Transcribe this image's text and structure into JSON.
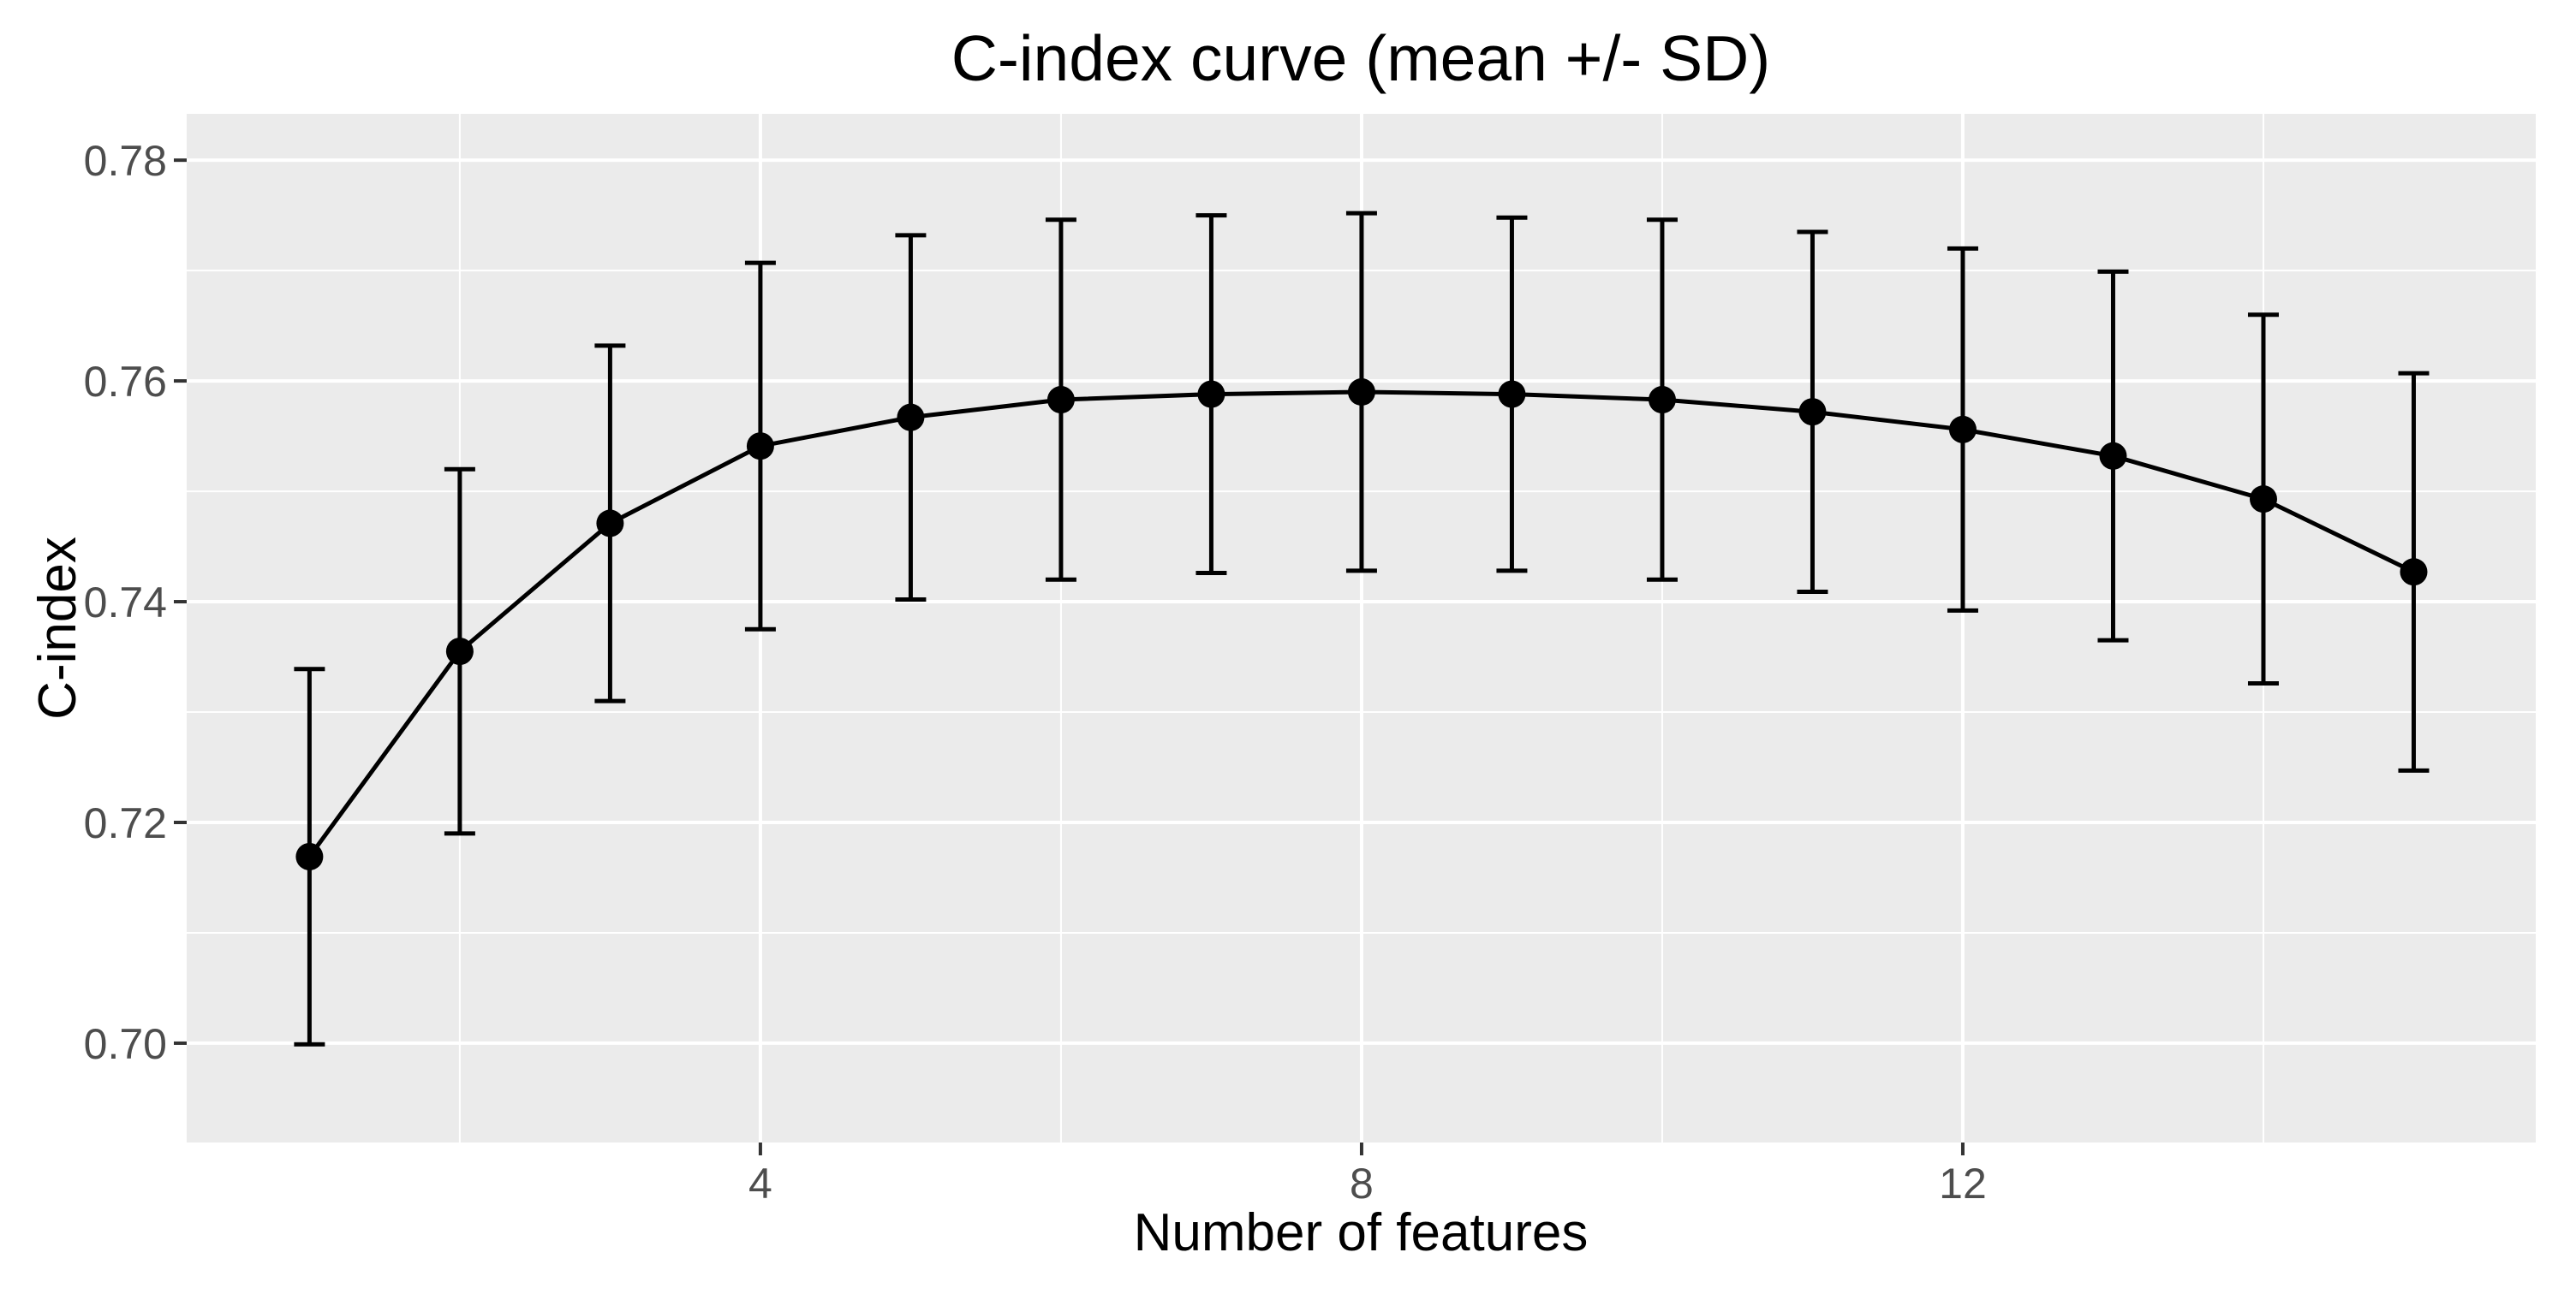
{
  "title": "C-index curve (mean +/- SD)",
  "x_axis": {
    "title": "Number of features",
    "tick_labels": [
      "4",
      "8",
      "12"
    ]
  },
  "y_axis": {
    "title": "C-index",
    "tick_labels": [
      "0.70",
      "0.72",
      "0.74",
      "0.76",
      "0.78"
    ]
  },
  "colors": {
    "background": "#FFFFFF",
    "panel_background": "#EBEBEB",
    "grid": "#FFFFFF",
    "axis_text": "#4D4D4D",
    "tick_mark": "#333333",
    "data": "#000000"
  },
  "chart_data": {
    "type": "line",
    "title": "C-index curve (mean +/- SD)",
    "xlabel": "Number of features",
    "ylabel": "C-index",
    "error_bars": "mean +/- SD",
    "legend_position": "none",
    "grid": true,
    "style": "ggplot2-grey",
    "point_style": "filled-circle",
    "x": [
      1,
      2,
      3,
      4,
      5,
      6,
      7,
      8,
      9,
      10,
      11,
      12,
      13,
      14,
      15
    ],
    "mean": [
      0.7169,
      0.7355,
      0.7471,
      0.7541,
      0.7567,
      0.7583,
      0.7588,
      0.759,
      0.7588,
      0.7583,
      0.7572,
      0.7556,
      0.7532,
      0.7493,
      0.7427
    ],
    "sd": [
      0.017,
      0.0165,
      0.0161,
      0.0166,
      0.0165,
      0.0163,
      0.0162,
      0.0162,
      0.016,
      0.0163,
      0.0163,
      0.0164,
      0.0167,
      0.0167,
      0.018
    ],
    "x_major_ticks": [
      4,
      8,
      12
    ],
    "x_minor_gridlines": [
      2,
      6,
      10,
      14
    ],
    "y_major_ticks": [
      0.7,
      0.72,
      0.74,
      0.76,
      0.78
    ],
    "y_minor_gridlines": [
      0.71,
      0.73,
      0.75,
      0.77
    ],
    "xlim": [
      0.183,
      15.812
    ],
    "ylim": [
      0.691,
      0.7842
    ]
  }
}
